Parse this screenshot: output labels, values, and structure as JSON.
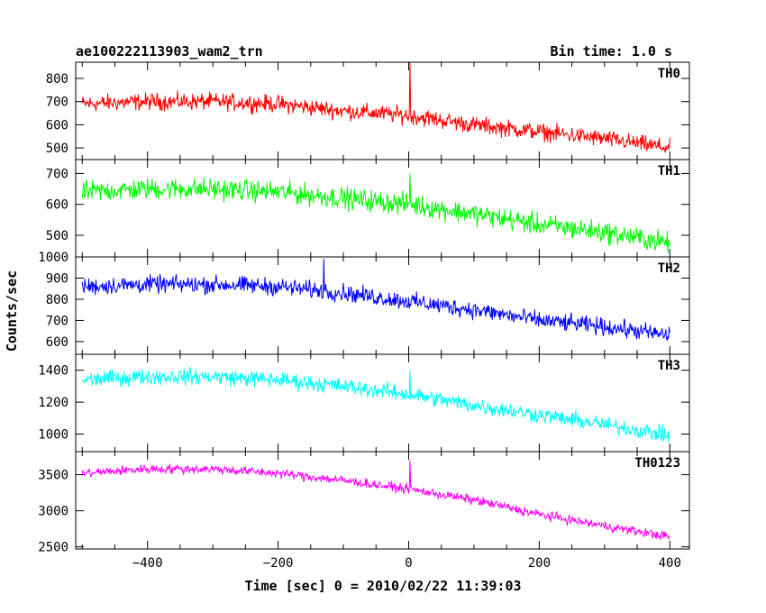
{
  "chart_data": {
    "type": "line",
    "title": "ae100222113903_wam2_trn",
    "subtitle": "Bin time: 1.0 s",
    "xlabel": "Time [sec] 0 = 2010/02/22 11:39:03",
    "ylabel": "Counts/sec",
    "xlim": [
      -510,
      430
    ],
    "x_ticks": [
      -400,
      -200,
      0,
      200,
      400
    ],
    "x_tick_labels": [
      "−400",
      "−200",
      "0",
      "200",
      "400"
    ],
    "bin_time_s": 1.0,
    "grid": false,
    "panels": [
      {
        "name": "TH0",
        "color": "#ff0000",
        "ylim": [
          450,
          870
        ],
        "y_ticks": [
          500,
          600,
          700,
          800
        ],
        "trend_x": [
          -500,
          -400,
          -300,
          -200,
          -100,
          0,
          100,
          200,
          300,
          400
        ],
        "trend_y": [
          690,
          700,
          700,
          690,
          660,
          640,
          600,
          570,
          540,
          500
        ],
        "noise": 40,
        "spike": {
          "x": 2,
          "y": 870
        }
      },
      {
        "name": "TH1",
        "color": "#00ff00",
        "ylim": [
          430,
          745
        ],
        "y_ticks": [
          500,
          600,
          700
        ],
        "trend_x": [
          -500,
          -400,
          -300,
          -200,
          -100,
          0,
          100,
          200,
          300,
          400
        ],
        "trend_y": [
          640,
          650,
          650,
          640,
          620,
          600,
          570,
          535,
          510,
          475
        ],
        "noise": 38,
        "spike": {
          "x": 2,
          "y": 700
        }
      },
      {
        "name": "TH2",
        "color": "#0000ff",
        "ylim": [
          540,
          1000
        ],
        "y_ticks": [
          600,
          700,
          800,
          900,
          1000
        ],
        "trend_x": [
          -500,
          -400,
          -300,
          -200,
          -100,
          0,
          100,
          200,
          300,
          400
        ],
        "trend_y": [
          860,
          870,
          870,
          860,
          830,
          790,
          750,
          700,
          670,
          630
        ],
        "noise": 45,
        "spike": {
          "x": -130,
          "y": 990
        }
      },
      {
        "name": "TH3",
        "color": "#00ffff",
        "ylim": [
          890,
          1500
        ],
        "y_ticks": [
          1000,
          1200,
          1400
        ],
        "trend_x": [
          -500,
          -400,
          -300,
          -200,
          -100,
          0,
          100,
          200,
          300,
          400
        ],
        "trend_y": [
          1340,
          1360,
          1360,
          1340,
          1300,
          1250,
          1180,
          1120,
          1060,
          990
        ],
        "noise": 55,
        "spike": {
          "x": 2,
          "y": 1400
        }
      },
      {
        "name": "TH0123",
        "color": "#ff00ff",
        "ylim": [
          2470,
          3820
        ],
        "y_ticks": [
          2500,
          3000,
          3500
        ],
        "trend_x": [
          -500,
          -400,
          -300,
          -200,
          -100,
          0,
          100,
          200,
          300,
          400
        ],
        "trend_y": [
          3520,
          3580,
          3580,
          3520,
          3420,
          3300,
          3150,
          2950,
          2790,
          2640
        ],
        "noise": 70,
        "spike": {
          "x": 2,
          "y": 3700
        }
      }
    ]
  }
}
